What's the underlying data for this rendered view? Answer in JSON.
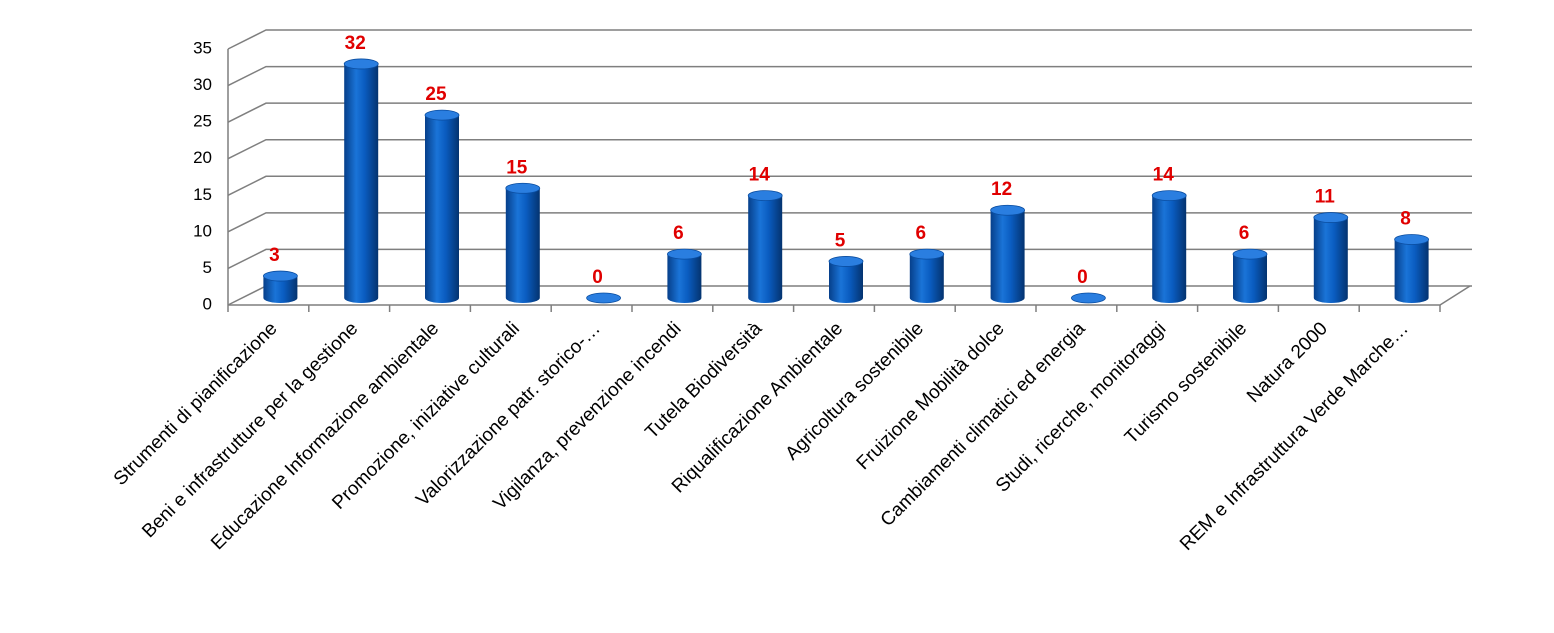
{
  "chart_data": {
    "type": "bar",
    "categories": [
      "Strumenti di pianificazione",
      "Beni e infrastrutture per la gestione",
      "Educazione Informazione ambientale",
      "Promozione, iniziative culturali",
      "Valorizzazione patr. storico-…",
      "Vigilanza, prevenzione incendi",
      "Tutela Biodiversità",
      "Riqualificazione Ambientale",
      "Agricoltura sostenibile",
      "Fruizione Mobilità dolce",
      "Cambiamenti climatici ed energia",
      "Studi, ricerche, monitoraggi",
      "Turismo sostenibile",
      "Natura 2000",
      "REM e Infrastruttura Verde Marche…"
    ],
    "values": [
      3,
      32,
      25,
      15,
      0,
      6,
      14,
      5,
      6,
      12,
      0,
      14,
      6,
      11,
      8
    ],
    "color": "#0a5cc0",
    "value_label_color": "#e00000",
    "ylim": [
      0,
      35
    ],
    "yticks": [
      0,
      5,
      10,
      15,
      20,
      25,
      30,
      35
    ],
    "grid": true
  }
}
